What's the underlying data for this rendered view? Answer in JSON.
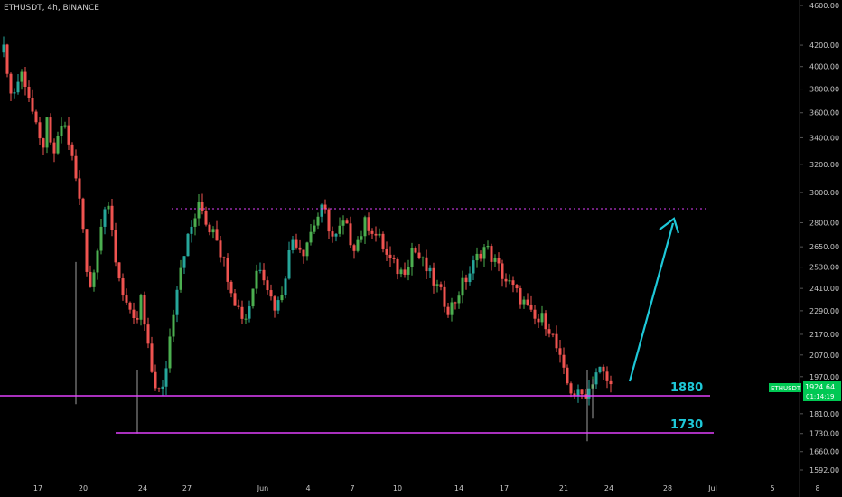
{
  "symbol_label": "ETHUSDT, 4h, BINANCE",
  "price_tag": {
    "symbol": "ETHUSDT",
    "price": "1924.64",
    "countdown": "01:14:19",
    "color": "#00c853"
  },
  "colors": {
    "background": "#000000",
    "up": "#26a69a",
    "up_bright": "#4caf50",
    "down": "#ef5350",
    "level_line": "#e040fb",
    "resistance": "#e040fb",
    "arrow": "#1ec8d8",
    "level_text": "#1ec8d8"
  },
  "chart_data": {
    "type": "candlestick",
    "title": "",
    "y_axis_scale": "log",
    "y_ticks": [
      4600,
      4200,
      4000,
      3800,
      3600,
      3400,
      3200,
      3000,
      2800,
      2650,
      2530,
      2410,
      2290,
      2170,
      2070,
      1970,
      1810,
      1730,
      1660,
      1592
    ],
    "x_ticks": [
      "17",
      "20",
      "24",
      "27",
      "Jun",
      "4",
      "7",
      "10",
      "14",
      "17",
      "21",
      "24",
      "28",
      "Jul",
      "5",
      "8"
    ],
    "horizontal_levels": [
      {
        "label": "1880",
        "value": 1880
      },
      {
        "label": "1730",
        "value": 1730
      }
    ],
    "resistance_line": {
      "value": 2880,
      "style": "dotted"
    },
    "projection_arrow": {
      "from_price": 1935,
      "to_price": 2850,
      "direction": "up"
    },
    "last_price": 1924.64,
    "price_path": [
      [
        4130,
        4150,
        3750,
        3800,
        3950,
        3850,
        3650,
        3450,
        3300,
        3500,
        3250,
        3350,
        3550,
        3400,
        3200,
        3000,
        2750,
        2400,
        2500,
        2750,
        2900,
        2850,
        2600,
        2450,
        2350,
        2250,
        2200,
        2350,
        2150,
        2000,
        1920,
        1880,
        2050,
        2250,
        2450,
        2600,
        2700,
        2800,
        2900,
        2870,
        2750
      ],
      [
        2800,
        2650,
        2550,
        2450,
        2350,
        2280,
        2250,
        2350,
        2500,
        2550,
        2450,
        2350,
        2300,
        2400,
        2550,
        2700,
        2680,
        2620,
        2700,
        2780,
        2850,
        2890,
        2780,
        2680,
        2750,
        2800,
        2700,
        2660,
        2720,
        2800,
        2780,
        2720,
        2680,
        2600,
        2550,
        2520,
        2500,
        2550,
        2650,
        2600,
        2550
      ],
      [
        2500,
        2450,
        2400,
        2350,
        2300,
        2330,
        2400,
        2450,
        2500,
        2560,
        2620,
        2650,
        2600,
        2550,
        2500,
        2450,
        2420,
        2380,
        2350,
        2300,
        2250,
        2230,
        2250,
        2220,
        2150,
        2070,
        1980,
        1920,
        1900,
        1880,
        1900,
        1920,
        1990,
        2000,
        1960,
        1925
      ]
    ]
  }
}
